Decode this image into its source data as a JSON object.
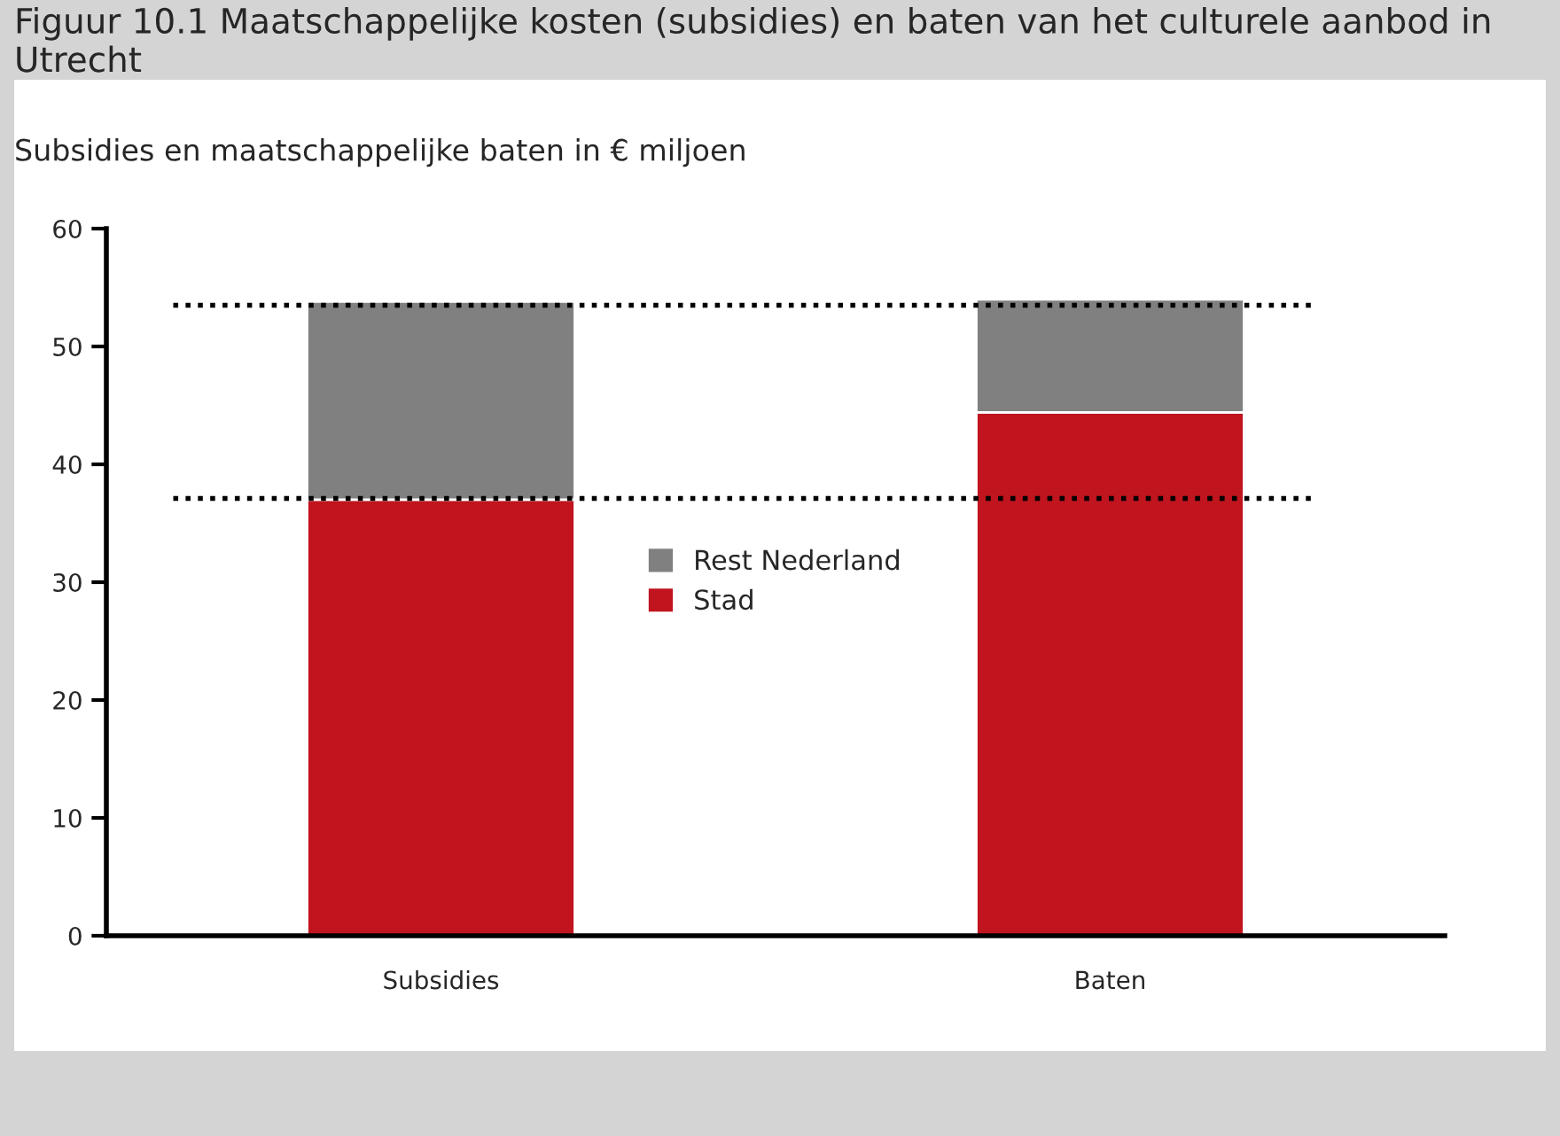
{
  "chart_data": {
    "type": "bar",
    "stacked": true,
    "title": "Figuur 10.1 Maatschappelijke kosten (subsidies) en baten van het culturele aanbod in Utrecht",
    "ylabel": "Subsidies en maatschappelijke baten in € miljoen",
    "categories": [
      "Subsidies",
      "Baten"
    ],
    "series": [
      {
        "name": "Stad",
        "color": "#c0141e",
        "values": [
          37,
          44.4
        ]
      },
      {
        "name": "Rest Nederland",
        "color": "#808080",
        "values": [
          16.8,
          9.6
        ]
      }
    ],
    "ylim": [
      0,
      60
    ],
    "yticks": [
      0,
      10,
      20,
      30,
      40,
      50,
      60
    ],
    "ref_lines": [
      {
        "axis": "y",
        "value": 53.5,
        "color": "#000000",
        "line_style": "dotted"
      },
      {
        "axis": "y",
        "value": 37.1,
        "color": "#000000",
        "line_style": "dotted"
      }
    ],
    "grid": false,
    "legend": "center"
  }
}
